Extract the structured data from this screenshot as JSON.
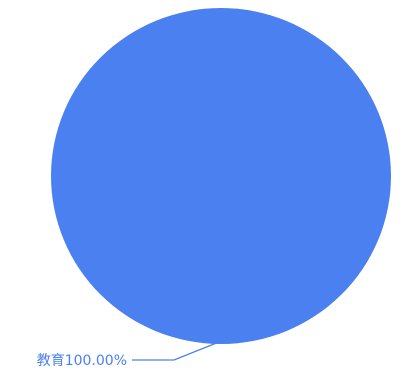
{
  "chart_data": {
    "type": "pie",
    "categories": [
      "教育"
    ],
    "values": [
      100
    ],
    "labels": [
      "教育100.00%"
    ],
    "colors": [
      "#4a80ef"
    ],
    "title": "",
    "legend": "none"
  }
}
